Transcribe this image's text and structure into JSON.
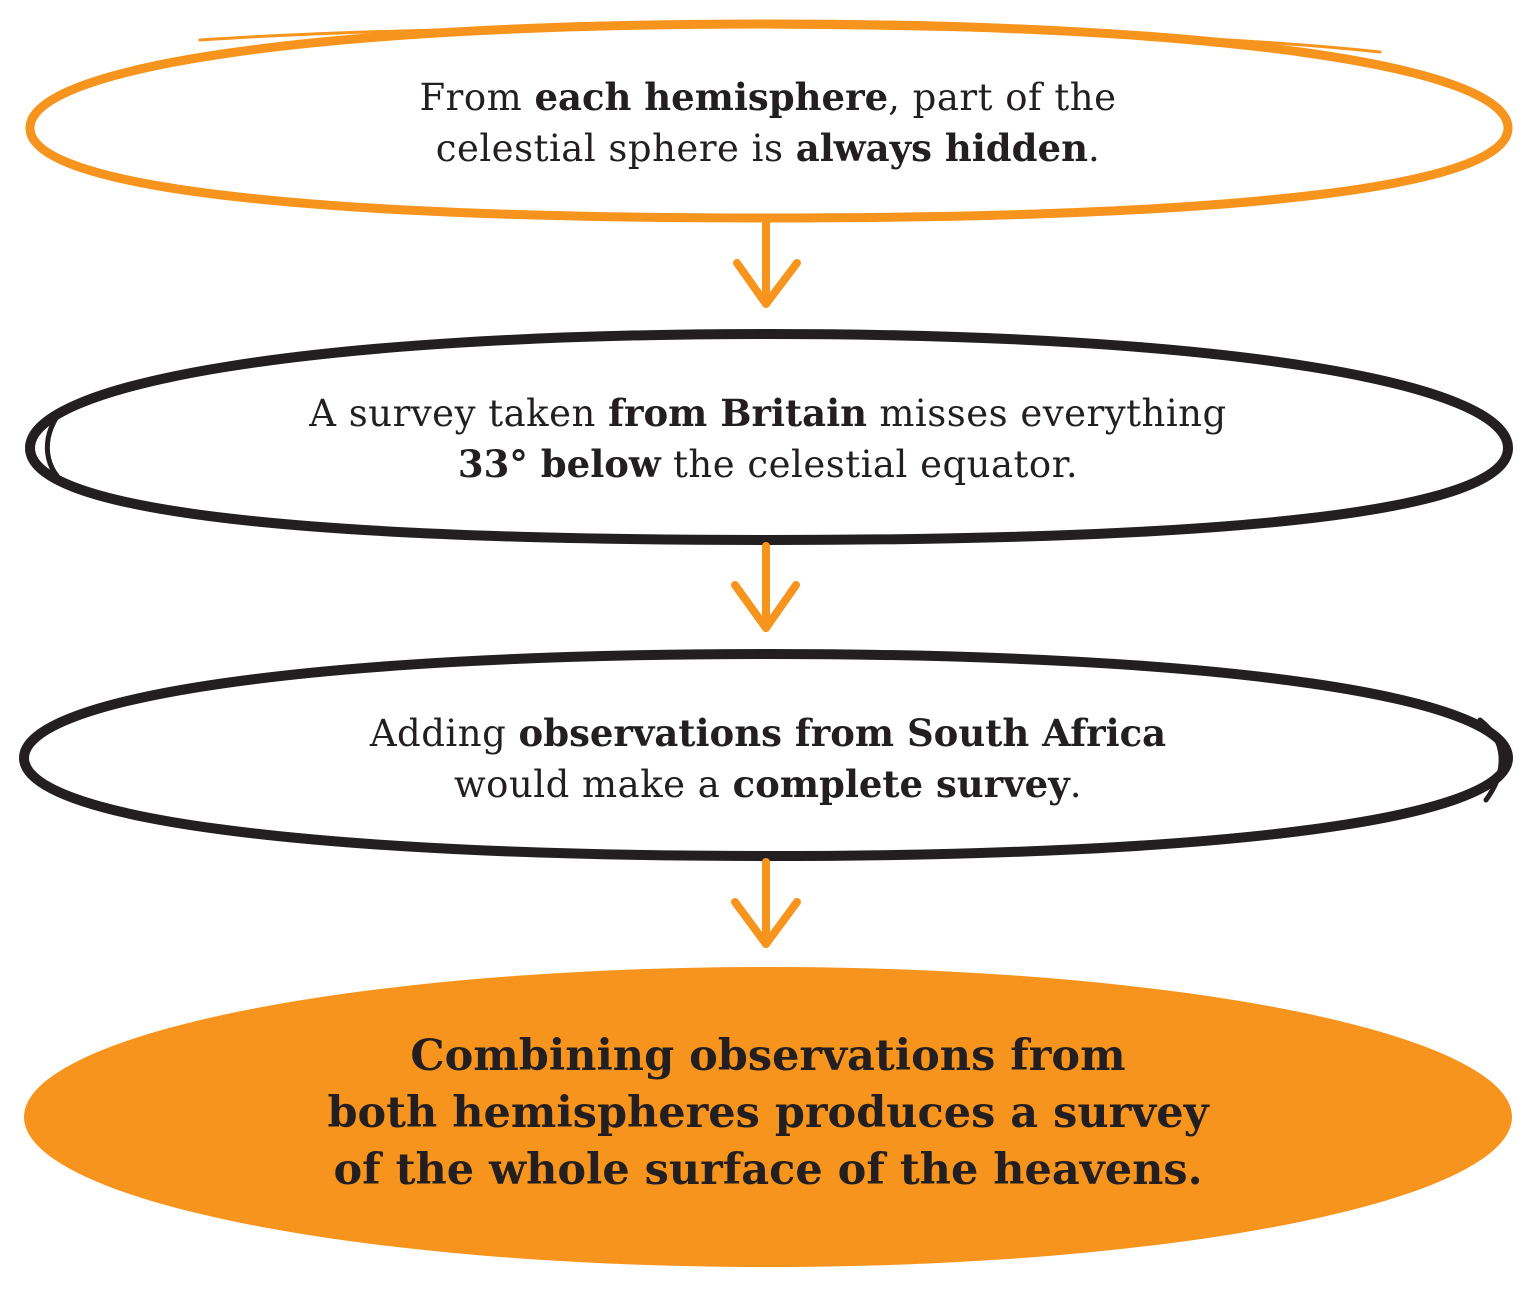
{
  "colors": {
    "orange": "#f7941d",
    "ink": "#231f20",
    "background": "#ffffff"
  },
  "nodes": [
    {
      "id": "node-1",
      "outline_color": "#f7941d",
      "lines": [
        [
          {
            "text": "From ",
            "bold": false
          },
          {
            "text": "each hemisphere",
            "bold": true
          },
          {
            "text": ", part of the",
            "bold": false
          }
        ],
        [
          {
            "text": "celestial sphere is ",
            "bold": false
          },
          {
            "text": "always hidden",
            "bold": true
          },
          {
            "text": ".",
            "bold": false
          }
        ]
      ]
    },
    {
      "id": "node-2",
      "outline_color": "#231f20",
      "lines": [
        [
          {
            "text": "A survey taken ",
            "bold": false
          },
          {
            "text": "from Britain",
            "bold": true
          },
          {
            "text": " misses everything",
            "bold": false
          }
        ],
        [
          {
            "text": "33° below",
            "bold": true
          },
          {
            "text": " the celestial equator.",
            "bold": false
          }
        ]
      ]
    },
    {
      "id": "node-3",
      "outline_color": "#231f20",
      "lines": [
        [
          {
            "text": "Adding ",
            "bold": false
          },
          {
            "text": "observations from South Africa",
            "bold": true
          }
        ],
        [
          {
            "text": "would make a ",
            "bold": false
          },
          {
            "text": "complete survey",
            "bold": true
          },
          {
            "text": ".",
            "bold": false
          }
        ]
      ]
    },
    {
      "id": "node-4",
      "fill_color": "#f7941d",
      "lines": [
        [
          {
            "text": "Combining observations from",
            "bold": true
          }
        ],
        [
          {
            "text": "both hemispheres produces a survey",
            "bold": true
          }
        ],
        [
          {
            "text": "of the whole surface of the heavens.",
            "bold": true
          }
        ]
      ]
    }
  ],
  "edges": [
    {
      "from": "node-1",
      "to": "node-2",
      "color": "#f7941d"
    },
    {
      "from": "node-2",
      "to": "node-3",
      "color": "#f7941d"
    },
    {
      "from": "node-3",
      "to": "node-4",
      "color": "#f7941d"
    }
  ]
}
